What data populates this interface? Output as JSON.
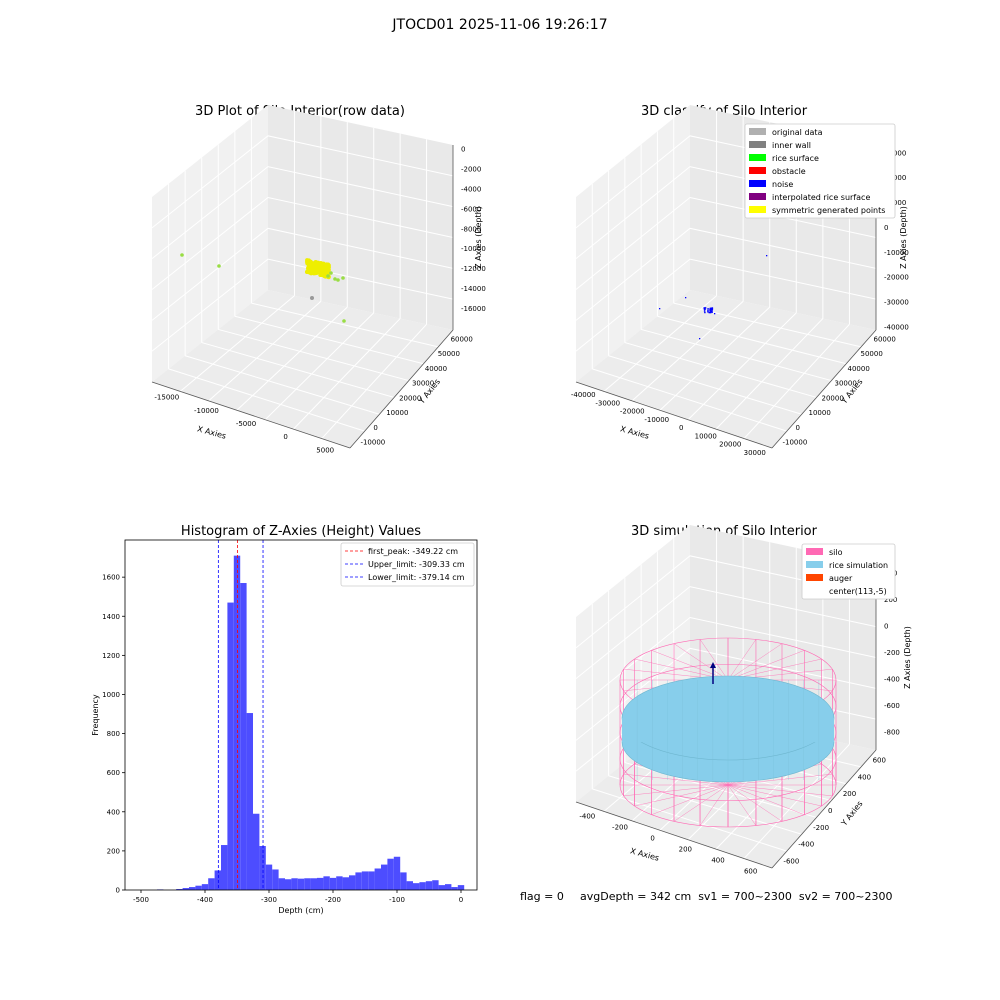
{
  "suptitle": "JTOCD01 2025-11-06 19:26:17",
  "footer": {
    "flag": "flag = 0",
    "stats": "avgDepth = 342 cm  sv1 = 700~2300  sv2 = 700~2300"
  },
  "chart_data": [
    {
      "type": "scatter",
      "title": "3D Plot of Silo Interior(row data)",
      "xlabel": "X Axies",
      "ylabel": "Y Axies",
      "zlabel": "Z Axies (Depth)",
      "x_ticks": [
        "-15000",
        "-10000",
        "-5000",
        "0",
        "5000"
      ],
      "y_ticks": [
        "-10000",
        "0",
        "10000",
        "20000",
        "30000",
        "40000",
        "50000",
        "60000"
      ],
      "z_ticks": [
        "0",
        "-2000",
        "-4000",
        "-6000",
        "-8000",
        "-10000",
        "-12000",
        "-14000",
        "-16000"
      ],
      "description_colors": {
        "cluster": "#eeee00",
        "sparse_green": "#99dd44",
        "sparse_gray": "#999999"
      }
    },
    {
      "type": "scatter",
      "title": "3D classify of Silo Interior",
      "xlabel": "X Axies",
      "ylabel": "Y Axies",
      "zlabel": "Z Axies (Depth)",
      "x_ticks": [
        "-40000",
        "-30000",
        "-20000",
        "-10000",
        "0",
        "10000",
        "20000",
        "30000"
      ],
      "y_ticks": [
        "-10000",
        "0",
        "10000",
        "20000",
        "30000",
        "40000",
        "50000",
        "60000"
      ],
      "z_ticks": [
        "30000",
        "20000",
        "10000",
        "0",
        "-10000",
        "-20000",
        "-30000",
        "-40000"
      ],
      "legend": [
        {
          "label": "original data",
          "color": "#b0b0b0"
        },
        {
          "label": "inner wall",
          "color": "#808080"
        },
        {
          "label": "rice surface",
          "color": "#00ff00"
        },
        {
          "label": "obstacle",
          "color": "#ff0000"
        },
        {
          "label": "noise",
          "color": "#0000ff"
        },
        {
          "label": "interpolated rice surface",
          "color": "#800080"
        },
        {
          "label": "symmetric generated points",
          "color": "#ffff00"
        }
      ]
    },
    {
      "type": "bar",
      "title": "Histogram of Z-Axies (Height) Values",
      "xlabel": "Depth (cm)",
      "ylabel": "Frequency",
      "xlim": [
        -525,
        25
      ],
      "ylim": [
        0,
        1790
      ],
      "x_ticks": [
        -500,
        -400,
        -300,
        -200,
        -100,
        0
      ],
      "y_ticks": [
        0,
        200,
        400,
        600,
        800,
        1000,
        1200,
        1400,
        1600
      ],
      "bin_width": 10,
      "bar_color": "#4d4dff",
      "bins": [
        {
          "x": -470,
          "v": 3
        },
        {
          "x": -440,
          "v": 5
        },
        {
          "x": -430,
          "v": 10
        },
        {
          "x": -420,
          "v": 15
        },
        {
          "x": -410,
          "v": 22
        },
        {
          "x": -400,
          "v": 30
        },
        {
          "x": -390,
          "v": 60
        },
        {
          "x": -380,
          "v": 100
        },
        {
          "x": -370,
          "v": 230
        },
        {
          "x": -360,
          "v": 1470
        },
        {
          "x": -350,
          "v": 1710
        },
        {
          "x": -340,
          "v": 1570
        },
        {
          "x": -330,
          "v": 905
        },
        {
          "x": -320,
          "v": 390
        },
        {
          "x": -310,
          "v": 225
        },
        {
          "x": -300,
          "v": 130
        },
        {
          "x": -290,
          "v": 105
        },
        {
          "x": -280,
          "v": 60
        },
        {
          "x": -270,
          "v": 55
        },
        {
          "x": -260,
          "v": 60
        },
        {
          "x": -250,
          "v": 58
        },
        {
          "x": -240,
          "v": 60
        },
        {
          "x": -230,
          "v": 60
        },
        {
          "x": -220,
          "v": 62
        },
        {
          "x": -210,
          "v": 70
        },
        {
          "x": -200,
          "v": 62
        },
        {
          "x": -190,
          "v": 70
        },
        {
          "x": -180,
          "v": 65
        },
        {
          "x": -170,
          "v": 75
        },
        {
          "x": -160,
          "v": 90
        },
        {
          "x": -150,
          "v": 95
        },
        {
          "x": -140,
          "v": 95
        },
        {
          "x": -130,
          "v": 110
        },
        {
          "x": -120,
          "v": 130
        },
        {
          "x": -110,
          "v": 160
        },
        {
          "x": -100,
          "v": 170
        },
        {
          "x": -90,
          "v": 90
        },
        {
          "x": -80,
          "v": 45
        },
        {
          "x": -70,
          "v": 35
        },
        {
          "x": -60,
          "v": 40
        },
        {
          "x": -50,
          "v": 45
        },
        {
          "x": -40,
          "v": 50
        },
        {
          "x": -30,
          "v": 25
        },
        {
          "x": -20,
          "v": 30
        },
        {
          "x": -10,
          "v": 15
        },
        {
          "x": 0,
          "v": 25
        }
      ],
      "vlines": [
        {
          "x": -349.22,
          "color": "#ff0000",
          "label": "first_peak: -349.22 cm"
        },
        {
          "x": -309.33,
          "color": "#0000ff",
          "label": "Upper_limit: -309.33 cm"
        },
        {
          "x": -379.14,
          "color": "#0000ff",
          "label": "Lower_limit: -379.14 cm"
        }
      ]
    },
    {
      "type": "scatter",
      "title": "3D simulation of Silo Interior",
      "xlabel": "X Axies",
      "ylabel": "Y Axies",
      "zlabel": "Z Axies (Depth)",
      "x_ticks": [
        "-400",
        "-200",
        "0",
        "200",
        "400",
        "600"
      ],
      "y_ticks": [
        "-600",
        "-400",
        "-200",
        "0",
        "200",
        "400",
        "600"
      ],
      "z_ticks": [
        "400",
        "200",
        "0",
        "-200",
        "-400",
        "-600",
        "-800"
      ],
      "legend": [
        {
          "label": "silo",
          "color": "#ff69b4"
        },
        {
          "label": "rice simulation",
          "color": "#87ceeb"
        },
        {
          "label": "auger",
          "color": "#ff4500"
        },
        {
          "label": "center(113,-5)",
          "color": ""
        }
      ]
    }
  ]
}
